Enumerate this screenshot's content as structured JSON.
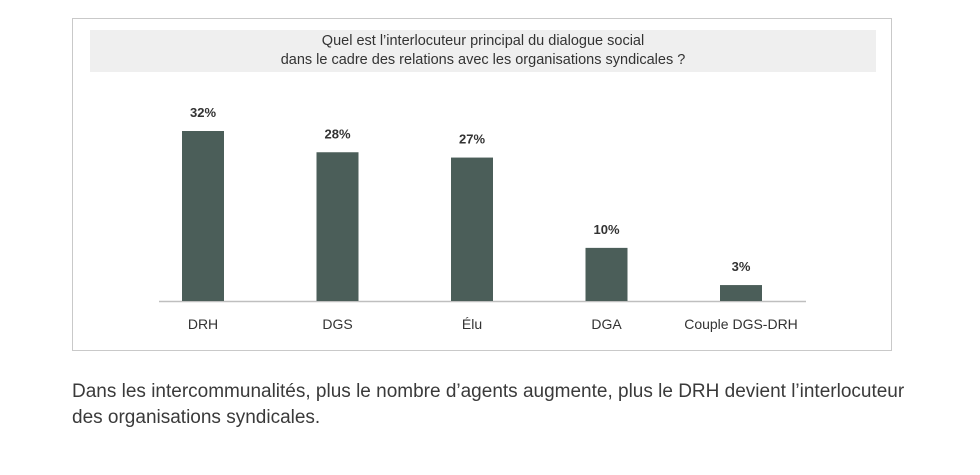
{
  "chart_data": {
    "type": "bar",
    "title_lines": [
      "Quel est l’interlocuteur principal du dialogue social",
      "dans le cadre des relations avec les organisations syndicales ?"
    ],
    "categories": [
      "DRH",
      "DGS",
      "Élu",
      "DGA",
      "Couple DGS-DRH"
    ],
    "values": [
      32,
      28,
      27,
      10,
      3
    ],
    "value_labels": [
      "32%",
      "28%",
      "27%",
      "10%",
      "3%"
    ],
    "unit": "%",
    "ylim": [
      0,
      32
    ],
    "grid": false,
    "legend": "none",
    "bar_color": "#4b5e59",
    "axis_color": "#bfbfbf"
  },
  "caption": "Dans les intercommunalités, plus le nombre d’agents augmente, plus le DRH devient l’interlocuteur des organisations syndicales."
}
